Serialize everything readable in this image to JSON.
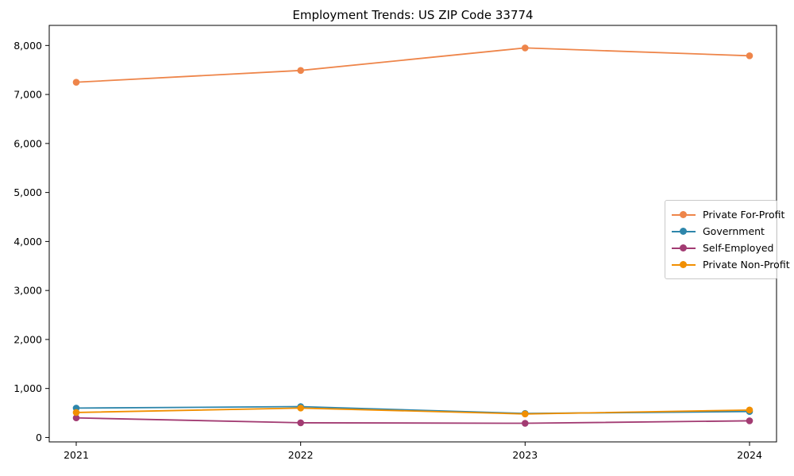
{
  "page": {
    "background_color": "#ffffff",
    "axis_color": "#000000"
  },
  "chart_data": {
    "type": "line",
    "title": "Employment Trends: US ZIP Code 33774",
    "xlabel": "",
    "ylabel": "",
    "categories": [
      "2021",
      "2022",
      "2023",
      "2024"
    ],
    "series": [
      {
        "name": "Private For-Profit",
        "color": "#EE854A",
        "values": [
          7250,
          7490,
          7950,
          7790
        ]
      },
      {
        "name": "Government",
        "color": "#2E86AB",
        "values": [
          600,
          630,
          490,
          530
        ]
      },
      {
        "name": "Self-Employed",
        "color": "#A23B72",
        "values": [
          400,
          300,
          290,
          340
        ]
      },
      {
        "name": "Private Non-Profit",
        "color": "#F18F01",
        "values": [
          510,
          600,
          480,
          560
        ]
      }
    ],
    "marker": "circle",
    "grid": false,
    "legend_position": "right",
    "ylim": [
      -90,
      8410
    ],
    "y_ticks": [
      0,
      1000,
      2000,
      3000,
      4000,
      5000,
      6000,
      7000,
      8000
    ],
    "y_tick_labels": [
      "0",
      "1,000",
      "2,000",
      "3,000",
      "4,000",
      "5,000",
      "6,000",
      "7,000",
      "8,000"
    ]
  }
}
